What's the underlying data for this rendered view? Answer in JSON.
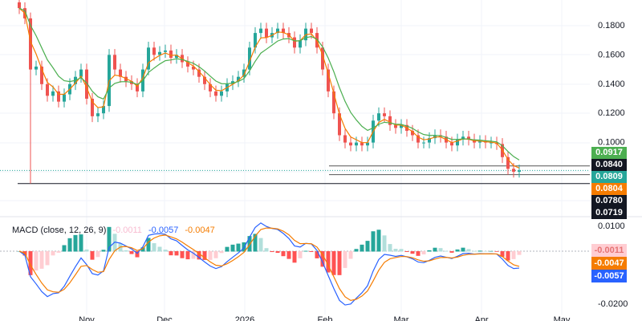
{
  "chart_data": {
    "type": "candlestick",
    "price_axis": {
      "ticks": [
        "0.1800",
        "0.1600",
        "0.1400",
        "0.1200",
        "0.1000"
      ],
      "tick_values": [
        0.18,
        0.16,
        0.14,
        0.12,
        0.1
      ]
    },
    "time_axis": {
      "labels": [
        "Nov",
        "Dec",
        "2026",
        "Feb",
        "Mar",
        "Apr",
        "May"
      ]
    },
    "closes": [
      0.192,
      0.185,
      0.15,
      0.152,
      0.14,
      0.132,
      0.135,
      0.128,
      0.133,
      0.14,
      0.145,
      0.15,
      0.13,
      0.118,
      0.12,
      0.125,
      0.16,
      0.15,
      0.145,
      0.142,
      0.14,
      0.135,
      0.15,
      0.165,
      0.16,
      0.162,
      0.163,
      0.158,
      0.16,
      0.155,
      0.152,
      0.15,
      0.145,
      0.14,
      0.135,
      0.132,
      0.135,
      0.14,
      0.142,
      0.145,
      0.15,
      0.165,
      0.175,
      0.178,
      0.172,
      0.175,
      0.178,
      0.175,
      0.172,
      0.165,
      0.17,
      0.178,
      0.175,
      0.165,
      0.15,
      0.135,
      0.12,
      0.105,
      0.1,
      0.098,
      0.1,
      0.098,
      0.1,
      0.115,
      0.12,
      0.118,
      0.112,
      0.11,
      0.112,
      0.108,
      0.105,
      0.1,
      0.1,
      0.103,
      0.105,
      0.104,
      0.1,
      0.098,
      0.102,
      0.104,
      0.102,
      0.1,
      0.101,
      0.1,
      0.1,
      0.099,
      0.09,
      0.082,
      0.08,
      0.0809
    ],
    "all_time_low_wick": 0.0719,
    "horizontal_levels": [
      0.084,
      0.078,
      0.0719
    ],
    "price_labels": [
      {
        "value": "0.0917",
        "color": "#4caf50"
      },
      {
        "value": "0.0840",
        "color": "#131722"
      },
      {
        "value": "0.0809",
        "color": "#26a69a"
      },
      {
        "value": "0.0804",
        "color": "#f57c00"
      },
      {
        "value": "0.0780",
        "color": "#131722"
      },
      {
        "value": "0.0719",
        "color": "#131722"
      }
    ],
    "ma_colors": {
      "fast": "#f57c00",
      "slow": "#4caf50"
    },
    "macd": {
      "title": "MACD (close, 12, 26, 9)",
      "histogram": "-0.0011",
      "macd": "-0.0057",
      "signal": "-0.0047",
      "ticks": [
        "0.0100",
        "-0.0200"
      ],
      "labels": [
        {
          "value": "-0.0011",
          "color": "#ffcdd2",
          "text": "#e57373"
        },
        {
          "value": "-0.0047",
          "color": "#f57c00",
          "text": "#fff"
        },
        {
          "value": "-0.0057",
          "color": "#2962ff",
          "text": "#fff"
        }
      ],
      "colors": {
        "macd": "#2962ff",
        "signal": "#f57c00",
        "up_strong": "#26a69a",
        "up_weak": "#b2dfdb",
        "down_strong": "#ff5252",
        "down_weak": "#ffcdd2"
      }
    }
  }
}
